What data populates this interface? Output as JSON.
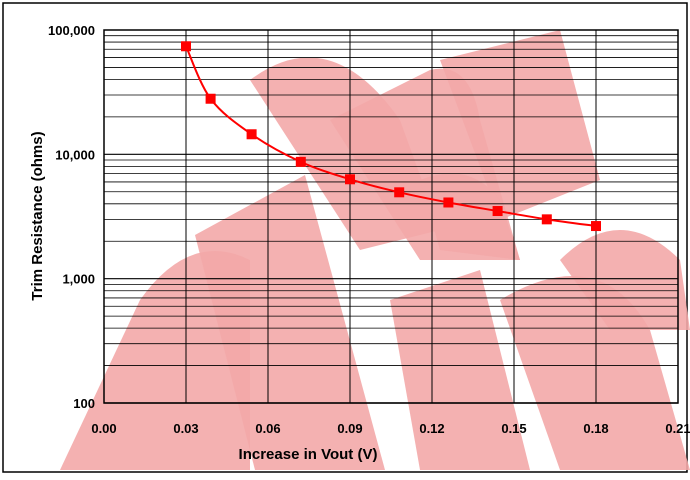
{
  "chart_data": {
    "type": "line",
    "title": "",
    "xlabel": "Increase in Vout (V)",
    "ylabel": "Trim Resistance (ohms)",
    "xlim": [
      0,
      0.21
    ],
    "ylim": [
      100,
      100000
    ],
    "yscale": "log",
    "grid": true,
    "legend": "none",
    "xticks": [
      {
        "value": 0,
        "label": "0.00"
      },
      {
        "value": 0.03,
        "label": "0.03"
      },
      {
        "value": 0.06,
        "label": "0.06"
      },
      {
        "value": 0.09,
        "label": "0.09"
      },
      {
        "value": 0.12,
        "label": "0.12"
      },
      {
        "value": 0.15,
        "label": "0.15"
      },
      {
        "value": 0.18,
        "label": "0.18"
      },
      {
        "value": 0.21,
        "label": "0.21"
      }
    ],
    "yticks": [
      {
        "value": 100,
        "label": "100"
      },
      {
        "value": 1000,
        "label": "1,000"
      },
      {
        "value": 10000,
        "label": "10,000"
      },
      {
        "value": 100000,
        "label": "100,000"
      }
    ],
    "series": [
      {
        "name": "",
        "color": "#ff0000",
        "marker": "square",
        "x": [
          0.03,
          0.039,
          0.054,
          0.072,
          0.09,
          0.108,
          0.126,
          0.144,
          0.162,
          0.18
        ],
        "y": [
          74000,
          28000,
          14500,
          8700,
          6300,
          4950,
          4100,
          3500,
          3000,
          2650
        ]
      }
    ]
  },
  "watermark": {
    "color": "#f3a9a9"
  }
}
